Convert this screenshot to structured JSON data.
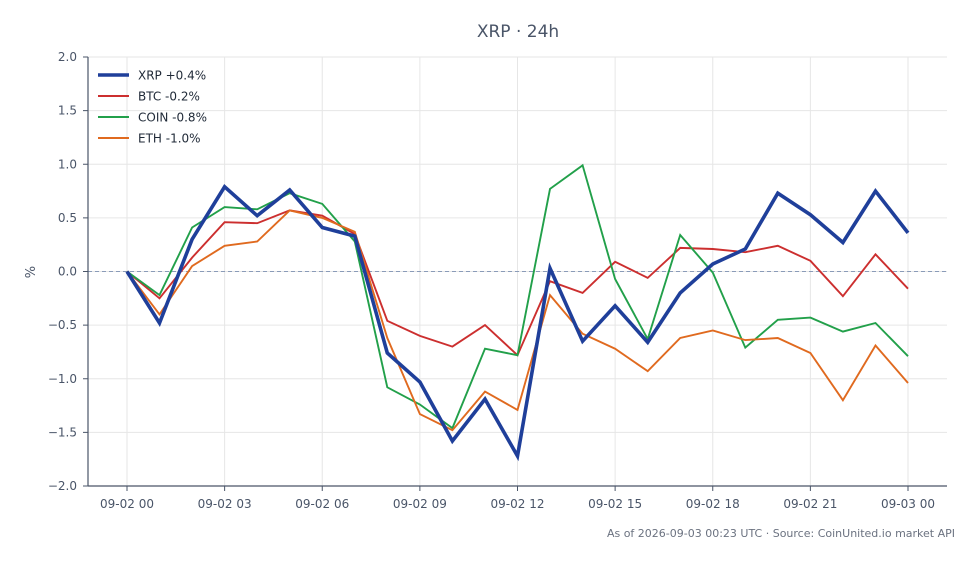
{
  "chart_data": {
    "type": "line",
    "title": "XRP · 24h",
    "xlabel": "",
    "ylabel": "%",
    "ylim": [
      -2.0,
      2.0
    ],
    "yticks": [
      "2.0",
      "1.5",
      "1.0",
      "0.5",
      "0.0",
      "−0.5",
      "−1.0",
      "−1.5",
      "−2.0"
    ],
    "ytick_values": [
      2.0,
      1.5,
      1.0,
      0.5,
      0.0,
      -0.5,
      -1.0,
      -1.5,
      -2.0
    ],
    "xticks": [
      "09-02 00",
      "09-02 03",
      "09-02 06",
      "09-02 09",
      "09-02 12",
      "09-02 15",
      "09-02 18",
      "09-02 21",
      "09-03 00"
    ],
    "xtick_hours": [
      0,
      3,
      6,
      9,
      12,
      15,
      18,
      21,
      24
    ],
    "x_hours": [
      0,
      1,
      2,
      3,
      4,
      5,
      6,
      7,
      8,
      9,
      10,
      11,
      12,
      13,
      14,
      15,
      16,
      17,
      18,
      19,
      20,
      21,
      22,
      23,
      24
    ],
    "grid": true,
    "legend_position": "top-left",
    "series": [
      {
        "name": "XRP +0.4%",
        "color": "#1f3f9a",
        "bold": true,
        "values": [
          0.0,
          -0.48,
          0.3,
          0.79,
          0.52,
          0.76,
          0.41,
          0.33,
          -0.76,
          -1.03,
          -1.58,
          -1.19,
          -1.72,
          0.03,
          -0.65,
          -0.32,
          -0.66,
          -0.2,
          0.07,
          0.21,
          0.73,
          0.53,
          0.27,
          0.75,
          0.36
        ]
      },
      {
        "name": "BTC -0.2%",
        "color": "#cc2f2f",
        "bold": false,
        "values": [
          0.0,
          -0.25,
          0.13,
          0.46,
          0.45,
          0.57,
          0.52,
          0.35,
          -0.46,
          -0.6,
          -0.7,
          -0.5,
          -0.78,
          -0.09,
          -0.2,
          0.09,
          -0.06,
          0.22,
          0.21,
          0.18,
          0.24,
          0.1,
          -0.23,
          0.16,
          -0.16
        ]
      },
      {
        "name": "COIN -0.8%",
        "color": "#22a04a",
        "bold": false,
        "values": [
          0.0,
          -0.22,
          0.41,
          0.6,
          0.58,
          0.73,
          0.63,
          0.28,
          -1.08,
          -1.24,
          -1.46,
          -0.72,
          -0.78,
          0.77,
          0.99,
          -0.07,
          -0.63,
          0.34,
          -0.01,
          -0.71,
          -0.45,
          -0.43,
          -0.56,
          -0.48,
          -0.79
        ]
      },
      {
        "name": "ETH -1.0%",
        "color": "#e06a1f",
        "bold": false,
        "values": [
          0.0,
          -0.4,
          0.05,
          0.24,
          0.28,
          0.57,
          0.5,
          0.37,
          -0.62,
          -1.33,
          -1.48,
          -1.12,
          -1.29,
          -0.22,
          -0.58,
          -0.72,
          -0.93,
          -0.62,
          -0.55,
          -0.64,
          -0.62,
          -0.76,
          -1.2,
          -0.69,
          -1.04
        ]
      }
    ],
    "footer": "As of 2026-09-03 00:23 UTC · Source: CoinUnited.io market API"
  }
}
